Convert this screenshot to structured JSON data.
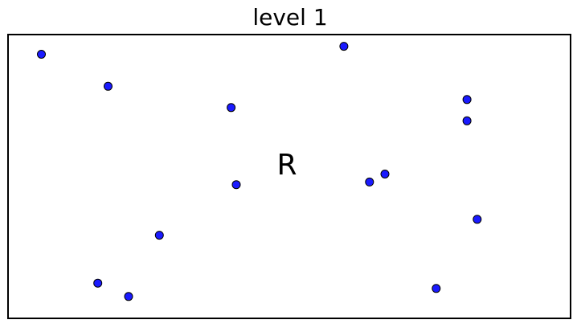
{
  "title": "level 1",
  "region": {
    "label": "R",
    "border_color": "#000000"
  },
  "point_style": {
    "fill": "#1a1aff",
    "stroke": "#000000"
  },
  "points": [
    {
      "x": 0.04,
      "y": 0.05
    },
    {
      "x": 0.17,
      "y": 0.17
    },
    {
      "x": 0.41,
      "y": 0.25
    },
    {
      "x": 0.63,
      "y": 0.02
    },
    {
      "x": 0.87,
      "y": 0.22
    },
    {
      "x": 0.87,
      "y": 0.3
    },
    {
      "x": 0.42,
      "y": 0.54
    },
    {
      "x": 0.68,
      "y": 0.53
    },
    {
      "x": 0.71,
      "y": 0.5
    },
    {
      "x": 0.89,
      "y": 0.67
    },
    {
      "x": 0.27,
      "y": 0.73
    },
    {
      "x": 0.15,
      "y": 0.91
    },
    {
      "x": 0.21,
      "y": 0.96
    },
    {
      "x": 0.81,
      "y": 0.93
    }
  ]
}
